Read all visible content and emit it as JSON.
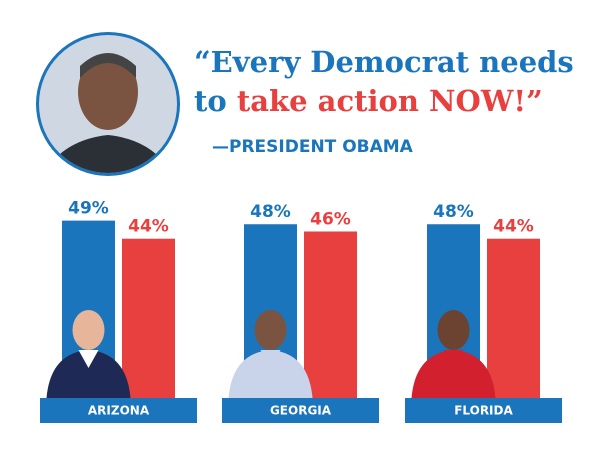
{
  "header": {
    "quote_line1": "“Every Democrat needs",
    "quote_line2_blue": "to ",
    "quote_line2_red": "take action NOW!”",
    "attribution": "—PRESIDENT OBAMA"
  },
  "chart_data": [
    {
      "type": "bar",
      "title": "ARIZONA",
      "values": [
        49,
        44
      ],
      "value_labels": [
        "49%",
        "44%"
      ],
      "colors": [
        "#1a75bc",
        "#e8403f"
      ]
    },
    {
      "type": "bar",
      "title": "GEORGIA",
      "values": [
        48,
        46
      ],
      "value_labels": [
        "48%",
        "46%"
      ],
      "colors": [
        "#1a75bc",
        "#e8403f"
      ]
    },
    {
      "type": "bar",
      "title": "FLORIDA",
      "values": [
        48,
        44
      ],
      "value_labels": [
        "48%",
        "44%"
      ],
      "colors": [
        "#1a75bc",
        "#e8403f"
      ]
    }
  ]
}
